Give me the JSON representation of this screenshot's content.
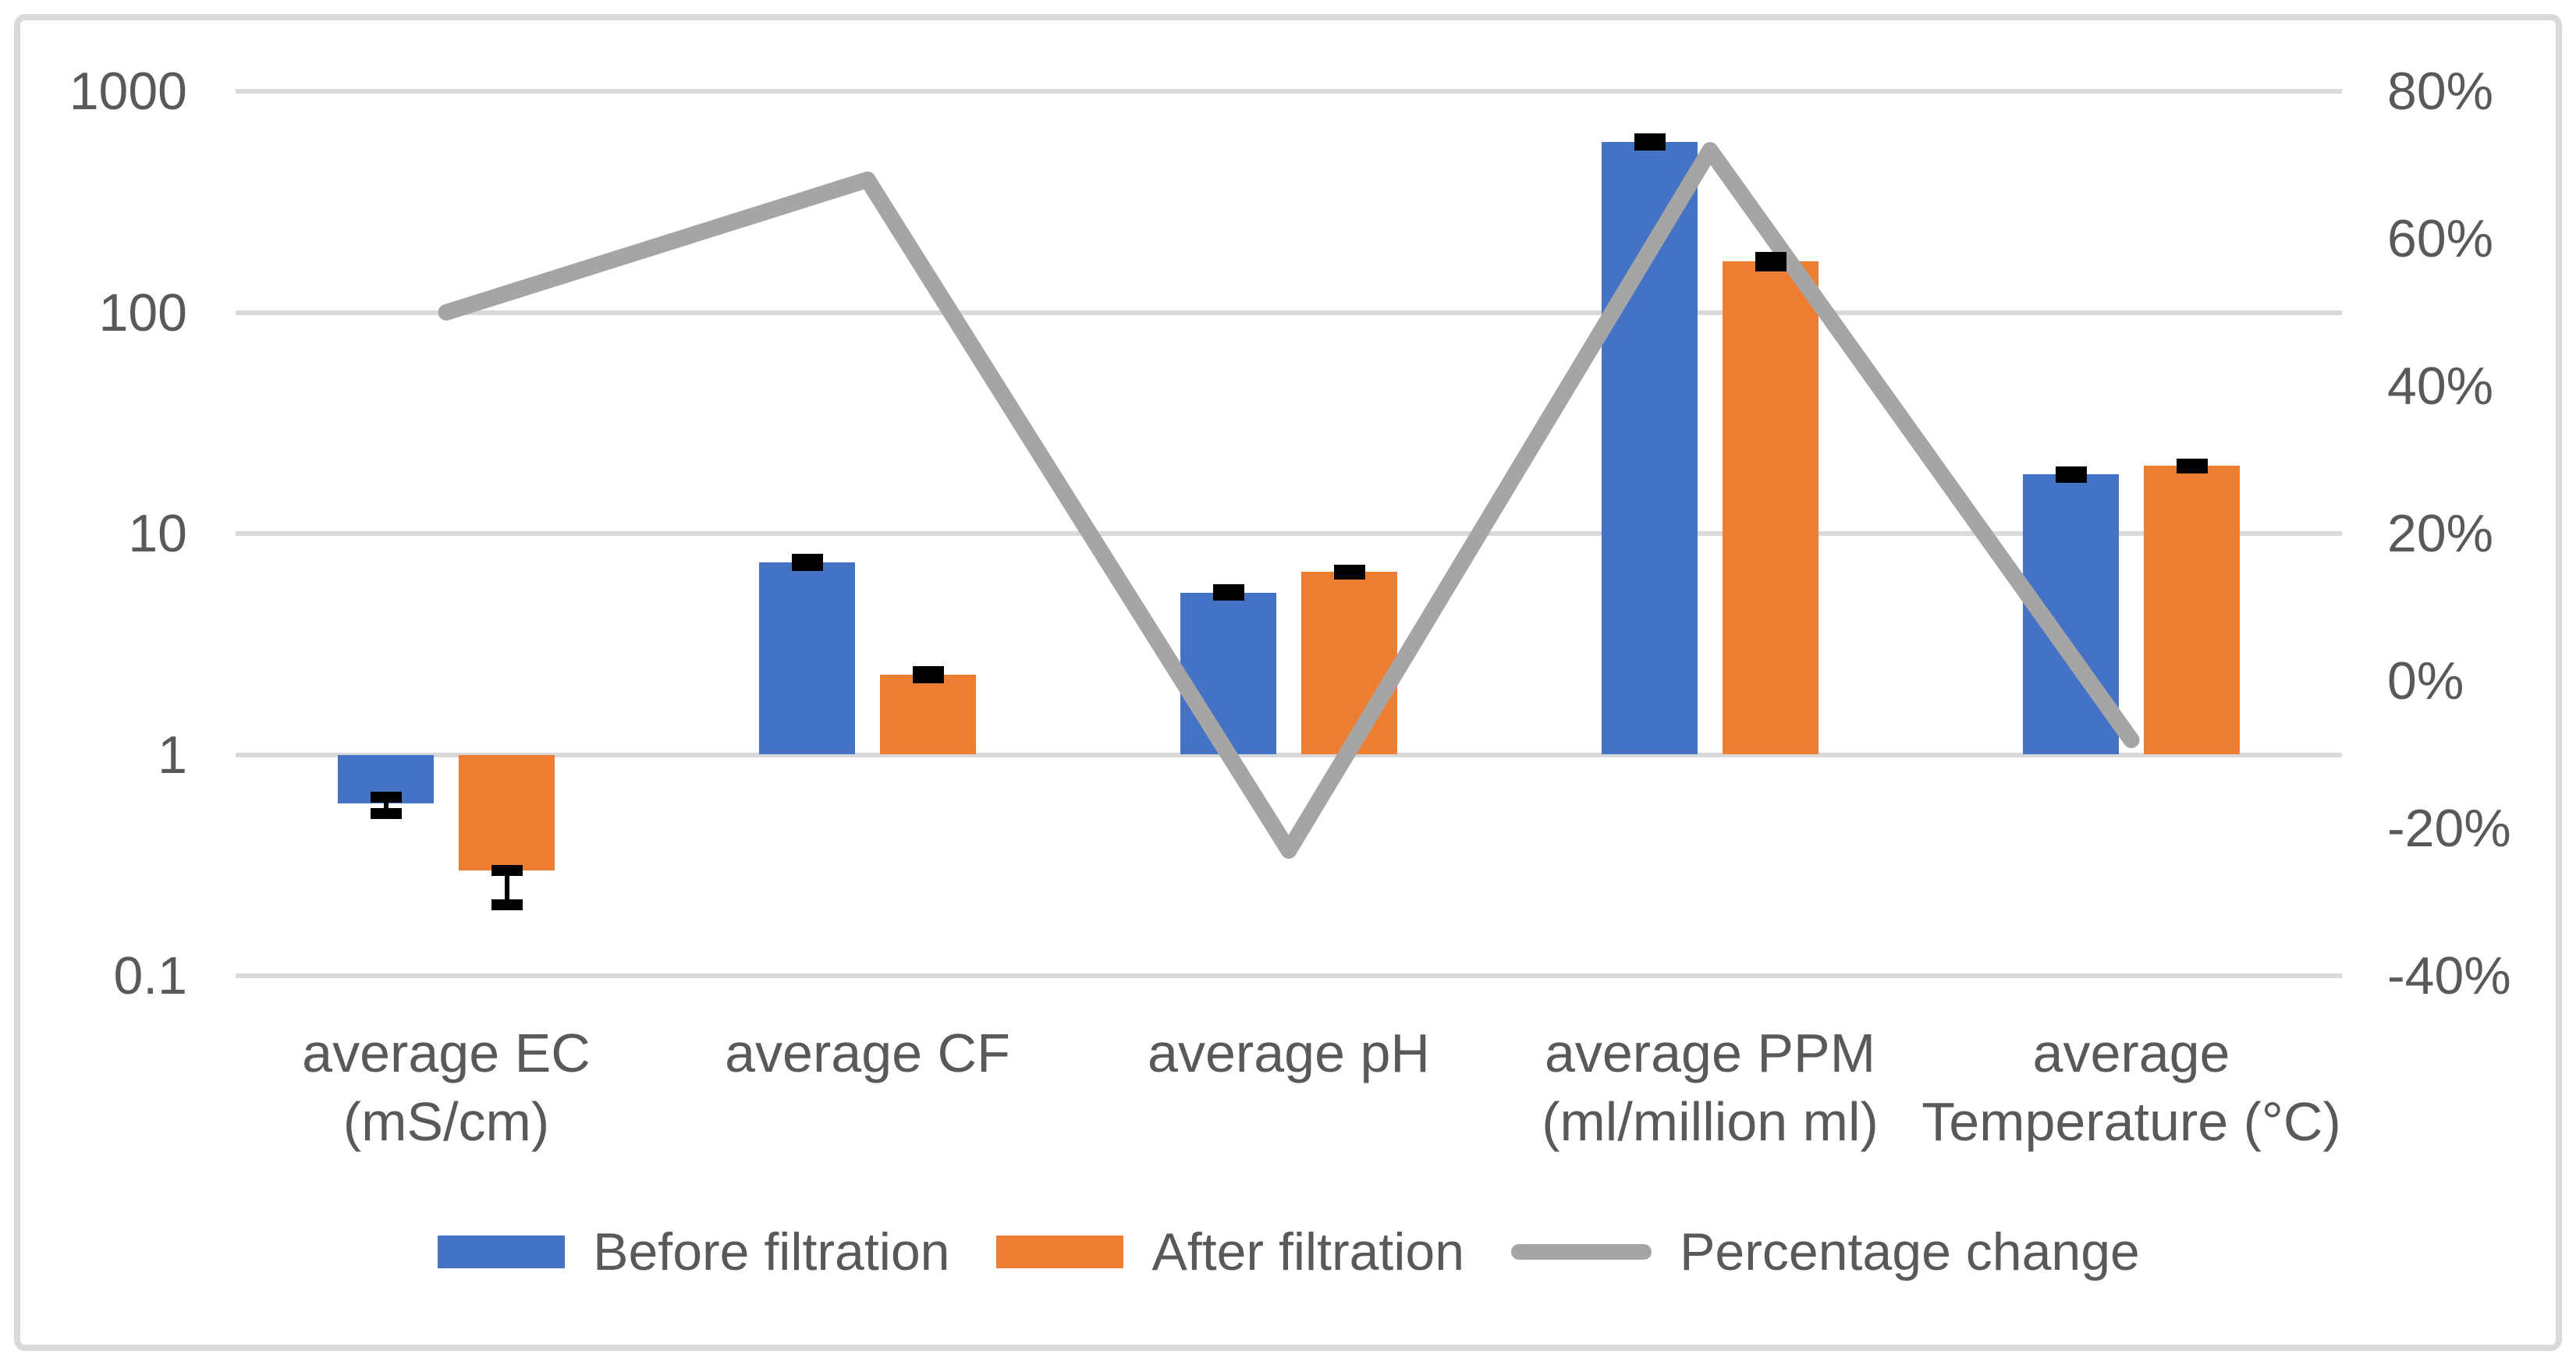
{
  "chart_data": {
    "type": "combo-bar-line",
    "y_axis_left": {
      "scale": "log",
      "min": 0.1,
      "max": 1000,
      "baseline": 1,
      "tick_labels": [
        "1000",
        "100",
        "10",
        "1",
        "0.1"
      ],
      "tick_values": [
        1000,
        100,
        10,
        1,
        0.1
      ]
    },
    "y_axis_right": {
      "scale": "linear",
      "min": -40,
      "max": 80,
      "tick_labels": [
        "80%",
        "60%",
        "40%",
        "20%",
        "0%",
        "-20%",
        "-40%"
      ],
      "tick_values": [
        80,
        60,
        40,
        20,
        0,
        -20,
        -40
      ]
    },
    "categories": [
      {
        "lines": [
          "average EC",
          "(mS/cm)"
        ]
      },
      {
        "lines": [
          "average CF"
        ]
      },
      {
        "lines": [
          "average pH"
        ]
      },
      {
        "lines": [
          "average PPM",
          "(ml/million ml)"
        ]
      },
      {
        "lines": [
          "average",
          "Temperature (°C)"
        ]
      }
    ],
    "series": [
      {
        "name": "Before filtration",
        "type": "bar",
        "color": "#4472c4",
        "values": [
          0.6,
          7.4,
          5.4,
          590,
          18.5
        ],
        "error_plus": [
          0.04,
          0.25,
          0.15,
          20,
          0.5
        ],
        "error_minus": [
          0.06,
          0.25,
          0.15,
          20,
          0.5
        ]
      },
      {
        "name": "After filtration",
        "type": "bar",
        "color": "#ed7d31",
        "values": [
          0.3,
          2.3,
          6.7,
          170,
          20.2
        ],
        "error_plus": [
          0.0,
          0.08,
          0.15,
          8,
          0.4
        ],
        "error_minus": [
          0.09,
          0.08,
          0.15,
          8,
          0.4
        ]
      },
      {
        "name": "Percentage change",
        "type": "line",
        "color": "#a5a5a5",
        "values_percent": [
          50,
          68,
          -23,
          72,
          -8
        ]
      }
    ],
    "legend": {
      "position": "bottom",
      "entries": [
        "Before filtration",
        "After filtration",
        "Percentage change"
      ]
    },
    "grid": {
      "show_horizontal": true,
      "color": "#d9d9d9"
    },
    "error_bar_color": "#000000",
    "text_color": "#595959",
    "background_color": "#ffffff",
    "border_color": "#d9d9d9",
    "title": "",
    "xlabel": "",
    "ylabel": ""
  }
}
